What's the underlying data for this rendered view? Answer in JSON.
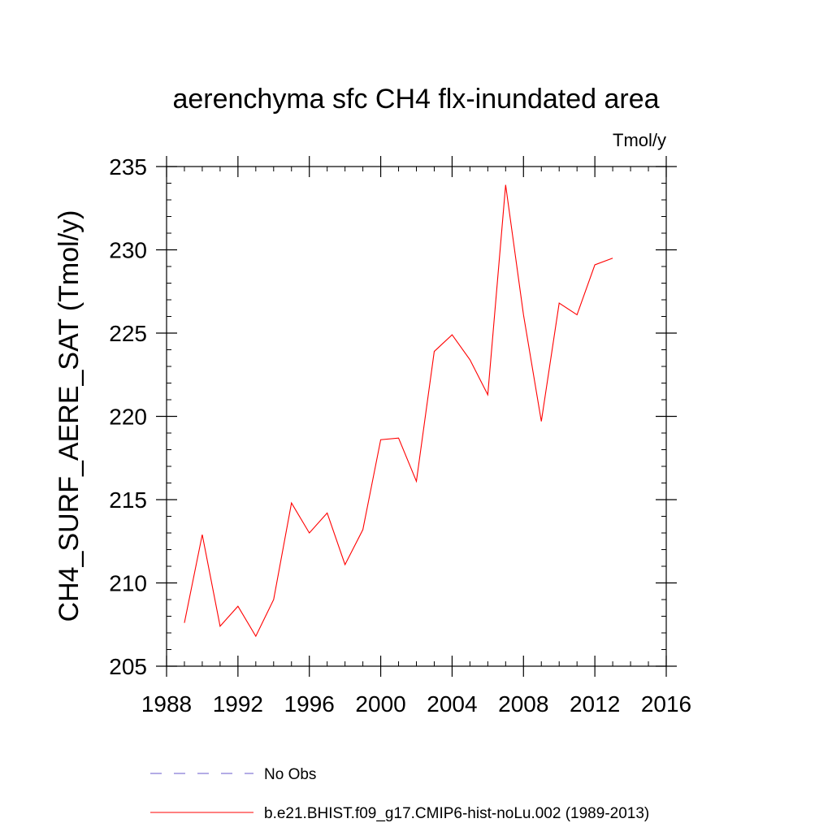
{
  "chart_data": {
    "type": "line",
    "title": "aerenchyma sfc CH4 flx-inundated area",
    "units_label": "Tmol/y",
    "ylabel": "CH4_SURF_AERE_SAT  (Tmol/y)",
    "xlabel": "",
    "xlim": [
      1988,
      2016
    ],
    "ylim": [
      205,
      235
    ],
    "x_ticks": [
      1988,
      1992,
      1996,
      2000,
      2004,
      2008,
      2012,
      2016
    ],
    "x_tick_labels": [
      "1988",
      "1992",
      "1996",
      "2000",
      "2004",
      "2008",
      "2012",
      "2016"
    ],
    "y_ticks": [
      205,
      210,
      215,
      220,
      225,
      230,
      235
    ],
    "y_tick_labels": [
      "205",
      "210",
      "215",
      "220",
      "225",
      "230",
      "235"
    ],
    "x_minor_step": 1,
    "y_minor_step": 1,
    "grid": false,
    "legend_position": "bottom",
    "series": [
      {
        "name": "b.e21.BHIST.f09_g17.CMIP6-hist-noLu.002 (1989-2013)",
        "color": "#ff0000",
        "style": "solid",
        "x": [
          1989,
          1990,
          1991,
          1992,
          1993,
          1994,
          1995,
          1996,
          1997,
          1998,
          1999,
          2000,
          2001,
          2002,
          2003,
          2004,
          2005,
          2006,
          2007,
          2008,
          2009,
          2010,
          2011,
          2012,
          2013
        ],
        "y": [
          207.6,
          212.9,
          207.4,
          208.6,
          206.8,
          209.0,
          214.8,
          213.0,
          214.2,
          211.1,
          213.2,
          218.6,
          218.7,
          216.1,
          223.9,
          224.9,
          223.4,
          221.3,
          233.9,
          226.1,
          219.7,
          226.8,
          226.1,
          229.1,
          229.5
        ]
      }
    ],
    "legend": [
      {
        "label": "No Obs",
        "color": "#6a5acd",
        "style": "dashed"
      },
      {
        "label": "b.e21.BHIST.f09_g17.CMIP6-hist-noLu.002 (1989-2013)",
        "color": "#ff0000",
        "style": "solid"
      }
    ]
  }
}
